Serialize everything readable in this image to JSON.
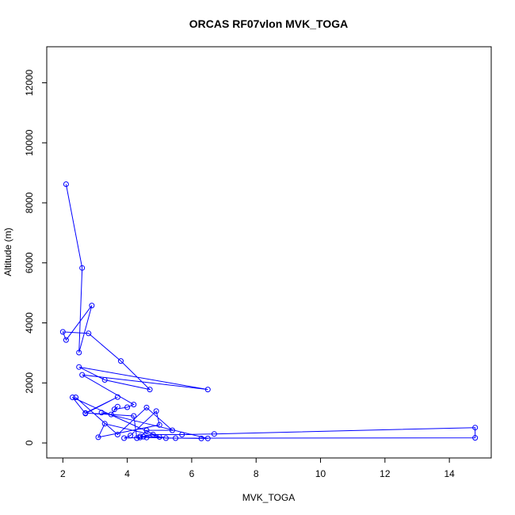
{
  "chart_data": {
    "type": "scatter",
    "title": "ORCAS RF07vlon MVK_TOGA",
    "xlabel": "MVK_TOGA",
    "ylabel": "Altitude (m)",
    "xlim": [
      1.5,
      15.3
    ],
    "ylim": [
      -500,
      13200
    ],
    "xticks": [
      2,
      4,
      6,
      8,
      10,
      12,
      14
    ],
    "yticks": [
      0,
      2000,
      4000,
      6000,
      8000,
      10000,
      12000
    ],
    "grid": false,
    "connected": true,
    "marker": "open-circle",
    "series_color": "#0000ff",
    "series": [
      {
        "x": [
          2.1,
          2.6,
          2.5,
          2.9,
          2.1,
          2.0,
          2.8,
          3.8,
          4.7,
          3.3,
          2.5,
          6.5,
          2.6,
          4.2,
          4.0,
          3.6,
          3.7,
          3.5,
          3.2,
          6.5,
          6.3,
          5.5,
          4.6,
          4.4,
          5.0,
          2.3,
          2.7,
          3.7,
          2.7,
          4.2,
          4.3,
          4.5,
          4.8,
          5.7,
          6.7,
          14.8,
          14.8,
          5.2,
          3.3,
          3.1,
          5.0,
          4.9,
          4.1,
          3.9,
          4.4,
          4.6,
          5.4,
          4.6,
          3.7,
          2.4
        ],
        "y": [
          8620,
          5830,
          3010,
          4580,
          3430,
          3700,
          3650,
          2730,
          1780,
          2100,
          2530,
          1780,
          2270,
          1280,
          1190,
          1120,
          1210,
          950,
          1010,
          150,
          150,
          160,
          180,
          220,
          200,
          1520,
          980,
          1530,
          1000,
          900,
          160,
          210,
          280,
          280,
          300,
          510,
          170,
          160,
          640,
          190,
          600,
          1060,
          250,
          160,
          180,
          420,
          420,
          1180,
          280,
          1520
        ]
      }
    ]
  }
}
